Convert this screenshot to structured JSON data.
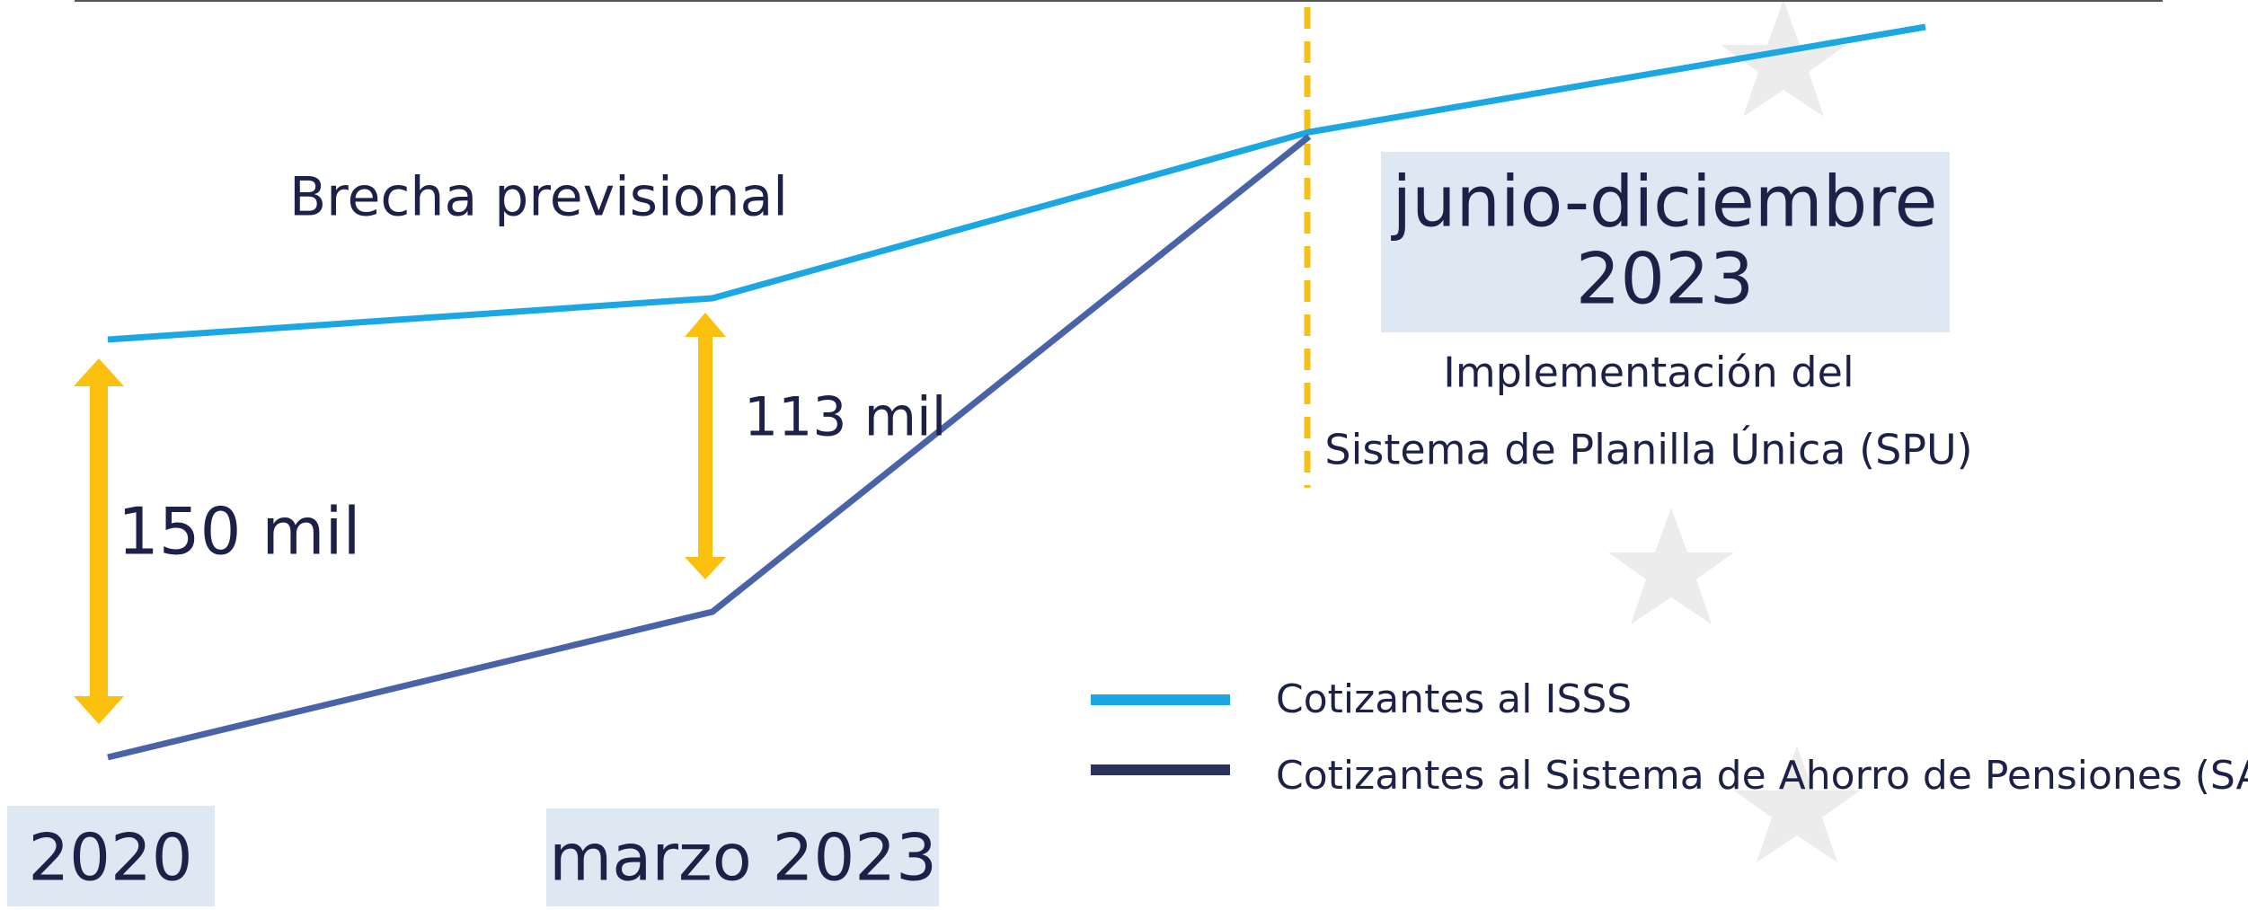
{
  "annotation": "Brecha previsional",
  "gaps": [
    "150 mil",
    "113 mil"
  ],
  "periods": [
    "2020",
    "marzo 2023"
  ],
  "callout": {
    "title_lines": [
      "junio-diciembre",
      "2023"
    ],
    "description_lines": [
      "Implementación del",
      "Sistema de Planilla Única (SPU)"
    ]
  },
  "legend": [
    "Cotizantes al ISSS",
    "Cotizantes al Sistema de Ahorro de Pensiones (SAP)"
  ]
}
